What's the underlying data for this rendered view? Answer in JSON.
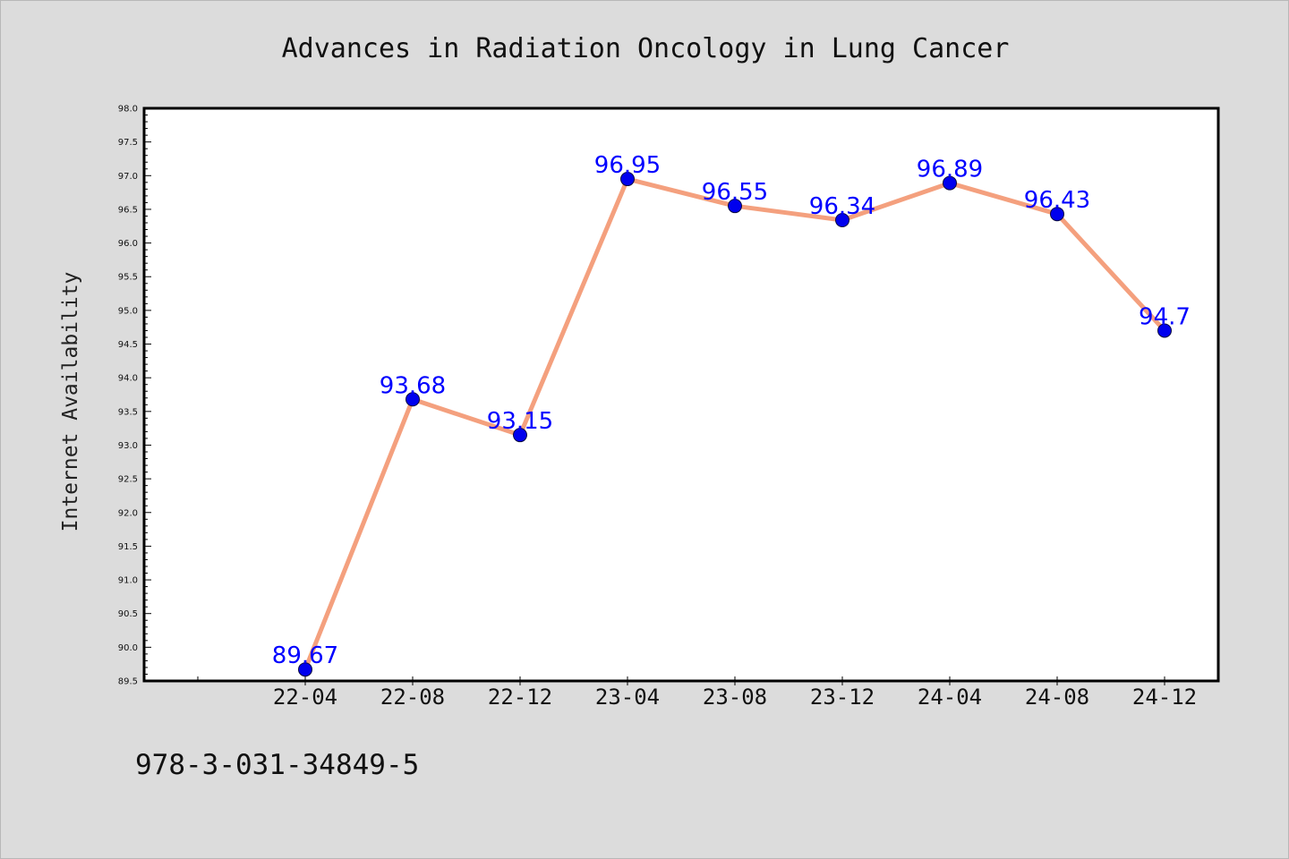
{
  "chart_data": {
    "type": "line",
    "title": "Advances in Radiation Oncology in Lung Cancer",
    "xlabel": "",
    "ylabel": "Internet Availability",
    "categories": [
      "22-04",
      "22-08",
      "22-12",
      "23-04",
      "23-08",
      "23-12",
      "24-04",
      "24-08",
      "24-12"
    ],
    "series": [
      {
        "values": [
          89.67,
          93.68,
          93.15,
          96.95,
          96.55,
          96.34,
          96.89,
          96.43,
          94.7
        ]
      }
    ],
    "data_labels": [
      "89.67",
      "93.68",
      "93.15",
      "96.95",
      "96.55",
      "96.34",
      "96.89",
      "96.43",
      "94.7"
    ],
    "ylim": [
      89.5,
      98.0
    ],
    "yticks": [
      "89.5",
      "90.0",
      "90.5",
      "91.0",
      "91.5",
      "92.0",
      "92.5",
      "93.0",
      "93.5",
      "94.0",
      "94.5",
      "95.0",
      "95.5",
      "96.0",
      "96.5",
      "97.0",
      "97.5",
      "98.0"
    ],
    "grid": false,
    "legend": "none",
    "colors": {
      "line": "#f4a07e",
      "marker": "#0000ee",
      "label": "#0000ff",
      "figure_background": "#dcdcdc",
      "plot_background": "#ffffff"
    }
  },
  "footer": {
    "text": "978-3-031-34849-5"
  }
}
